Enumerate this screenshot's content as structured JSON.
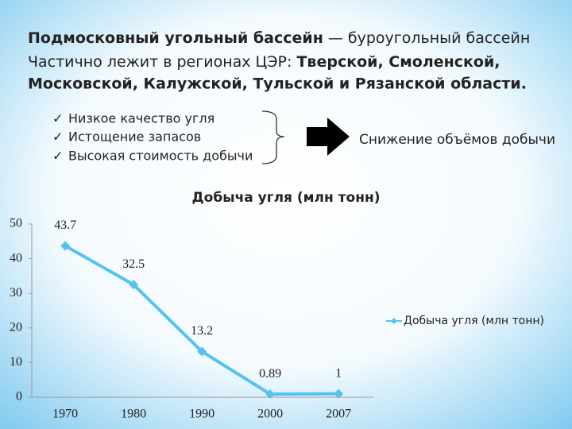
{
  "slide": {
    "heading": [
      [
        "Подмосковный угольный бассейн",
        " — буроугольный бассейн"
      ],
      [
        "Частично лежит в регионах ЦЭР: ",
        "Тверской, Смоленской,"
      ],
      [
        "Московской, Калужской, Тульской и Рязанской области."
      ]
    ],
    "causes": [
      "Низкое качество угля",
      "Истощение запасов",
      "Высокая стоимость добычи"
    ],
    "effect": "Снижение объёмов добычи"
  },
  "chart_data": {
    "type": "line",
    "title": "Добыча угля (млн тонн)",
    "categories": [
      "1970",
      "1980",
      "1990",
      "2000",
      "2007"
    ],
    "series": [
      {
        "name": "Добыча угля (млн тонн)",
        "color": "#55c3ee",
        "values": [
          43.7,
          32.5,
          13.2,
          0.89,
          1
        ]
      }
    ],
    "ylim": [
      0,
      50
    ],
    "yticks": [
      0,
      10,
      20,
      30,
      40,
      50
    ],
    "grid": false,
    "legend": "right",
    "data_labels": true
  }
}
